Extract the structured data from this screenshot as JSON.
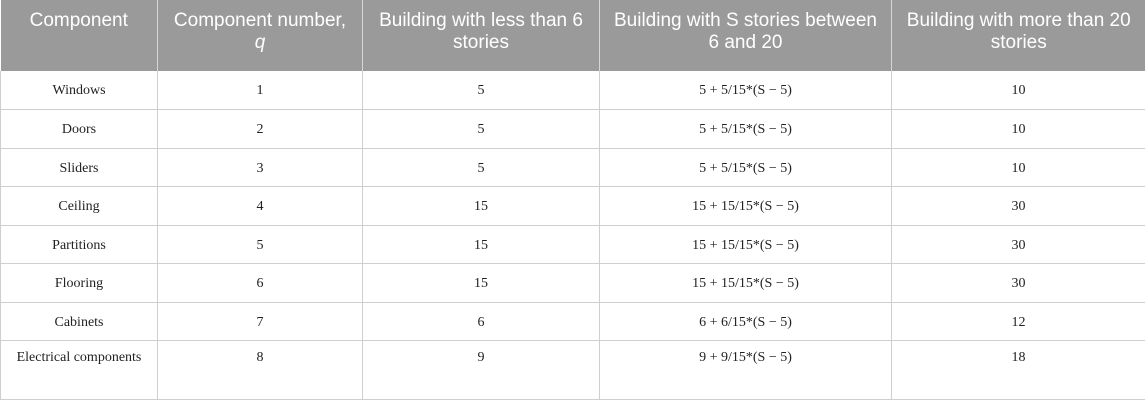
{
  "table": {
    "headers": [
      "Component",
      "Component number,",
      "Building with less than 6 stories",
      "Building with S stories between 6 and 20",
      "Building with more than 20 stories"
    ],
    "header_q": "q",
    "rows": [
      [
        "Windows",
        "1",
        "5",
        "5 + 5/15*(S − 5)",
        "10"
      ],
      [
        "Doors",
        "2",
        "5",
        "5 + 5/15*(S − 5)",
        "10"
      ],
      [
        "Sliders",
        "3",
        "5",
        "5 + 5/15*(S − 5)",
        "10"
      ],
      [
        "Ceiling",
        "4",
        "15",
        "15 + 15/15*(S − 5)",
        "30"
      ],
      [
        "Partitions",
        "5",
        "15",
        "15 + 15/15*(S − 5)",
        "30"
      ],
      [
        "Flooring",
        "6",
        "15",
        "15 + 15/15*(S − 5)",
        "30"
      ],
      [
        "Cabinets",
        "7",
        "6",
        "6 + 6/15*(S − 5)",
        "12"
      ],
      [
        "Electrical components",
        "8",
        "9",
        "9 + 9/15*(S − 5)",
        "18"
      ]
    ]
  }
}
